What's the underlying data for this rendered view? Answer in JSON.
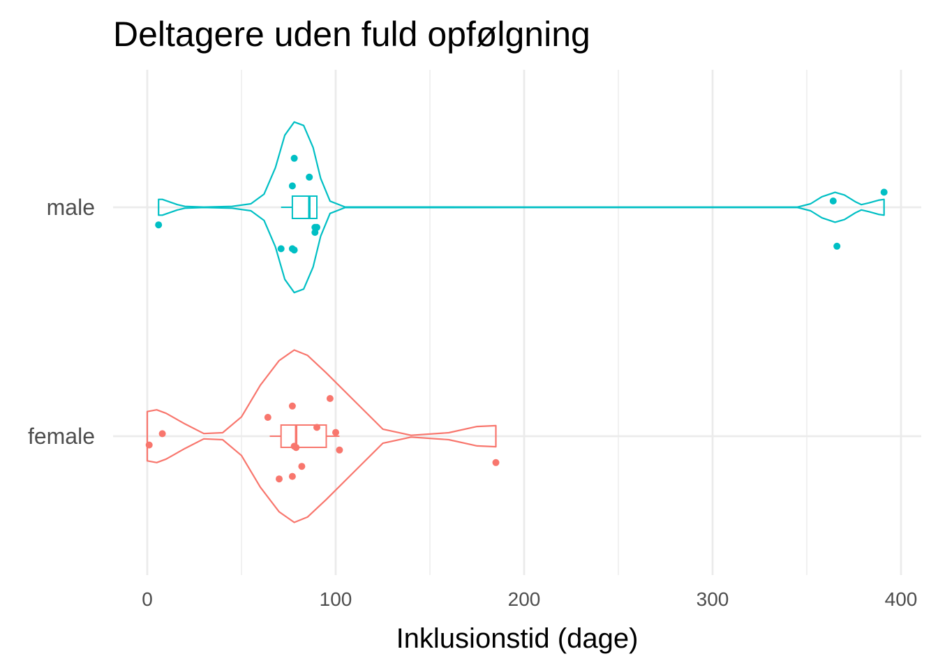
{
  "chart_data": {
    "type": "violin",
    "title": "Deltagere uden fuld opfølgning",
    "xlabel": "Inklusionstid (dage)",
    "ylabel": "",
    "xlim": [
      -5,
      400
    ],
    "x_ticks": [
      0,
      100,
      200,
      300,
      400
    ],
    "x_minor_ticks": [
      50,
      150,
      250,
      350
    ],
    "categories": [
      "female",
      "male"
    ],
    "grid": true,
    "legend": "none",
    "series": [
      {
        "category": "female",
        "color": "#F8766D",
        "violin_density": [
          [
            0,
            0.28
          ],
          [
            5,
            0.3
          ],
          [
            10,
            0.26
          ],
          [
            20,
            0.14
          ],
          [
            30,
            0.03
          ],
          [
            40,
            0.04
          ],
          [
            50,
            0.22
          ],
          [
            60,
            0.58
          ],
          [
            70,
            0.86
          ],
          [
            78,
            0.98
          ],
          [
            85,
            0.92
          ],
          [
            95,
            0.72
          ],
          [
            110,
            0.4
          ],
          [
            125,
            0.08
          ],
          [
            140,
            0.01
          ],
          [
            160,
            0.04
          ],
          [
            175,
            0.11
          ],
          [
            185,
            0.12
          ]
        ],
        "boxplot": {
          "min": 65,
          "q1": 71,
          "median": 79,
          "q3": 95,
          "max": 102
        },
        "points": [
          [
            1,
            -0.07
          ],
          [
            8,
            0.02
          ],
          [
            97,
            0.3
          ],
          [
            77,
            0.24
          ],
          [
            64,
            0.15
          ],
          [
            90,
            0.07
          ],
          [
            100,
            0.03
          ],
          [
            79,
            -0.09
          ],
          [
            78,
            -0.08
          ],
          [
            102,
            -0.11
          ],
          [
            82,
            -0.24
          ],
          [
            77,
            -0.32
          ],
          [
            70,
            -0.34
          ],
          [
            185,
            -0.21
          ]
        ]
      },
      {
        "category": "male",
        "color": "#00BFC4",
        "violin_density": [
          [
            6,
            0.09
          ],
          [
            8,
            0.09
          ],
          [
            12,
            0.06
          ],
          [
            16,
            0.03
          ],
          [
            20,
            0.01
          ],
          [
            30,
            0.002
          ],
          [
            45,
            0.01
          ],
          [
            55,
            0.04
          ],
          [
            62,
            0.15
          ],
          [
            68,
            0.45
          ],
          [
            73,
            0.82
          ],
          [
            78,
            0.97
          ],
          [
            83,
            0.93
          ],
          [
            88,
            0.68
          ],
          [
            92,
            0.33
          ],
          [
            97,
            0.07
          ],
          [
            105,
            0.003
          ],
          [
            200,
            0.002
          ],
          [
            345,
            0.002
          ],
          [
            352,
            0.04
          ],
          [
            358,
            0.12
          ],
          [
            365,
            0.17
          ],
          [
            370,
            0.14
          ],
          [
            376,
            0.06
          ],
          [
            379,
            0.03
          ],
          [
            383,
            0.05
          ],
          [
            388,
            0.08
          ],
          [
            391,
            0.09
          ]
        ],
        "boxplot": {
          "min": 71,
          "q1": 77,
          "median": 86,
          "q3": 90,
          "max": 90
        },
        "points": [
          [
            78,
            0.39
          ],
          [
            86,
            0.24
          ],
          [
            77,
            0.17
          ],
          [
            6,
            -0.14
          ],
          [
            90,
            -0.16
          ],
          [
            89,
            -0.16
          ],
          [
            89,
            -0.2
          ],
          [
            71,
            -0.33
          ],
          [
            77,
            -0.33
          ],
          [
            78,
            -0.34
          ],
          [
            391,
            0.12
          ],
          [
            364,
            0.05
          ],
          [
            366,
            -0.31
          ]
        ]
      }
    ]
  }
}
